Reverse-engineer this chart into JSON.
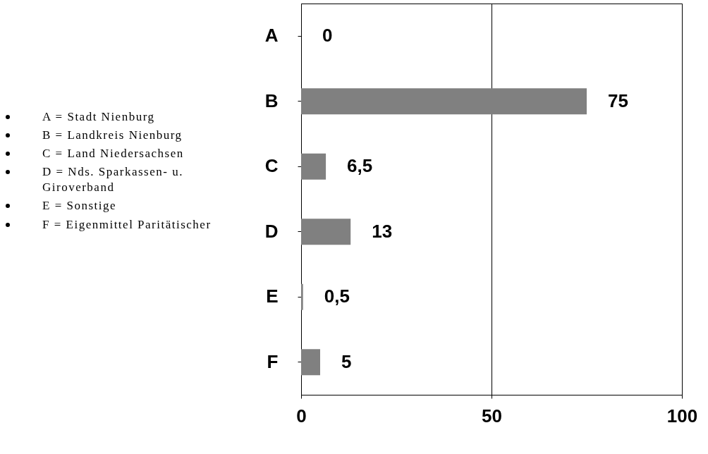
{
  "chart_data": {
    "type": "bar",
    "orientation": "horizontal",
    "categories": [
      "A",
      "B",
      "C",
      "D",
      "E",
      "F"
    ],
    "values": [
      0,
      75,
      6.5,
      13,
      0.5,
      5
    ],
    "value_labels": [
      "0",
      "75",
      "6,5",
      "13",
      "0,5",
      "5"
    ],
    "color": "#808080",
    "xlim": [
      0,
      100
    ],
    "xticks": [
      0,
      50,
      100
    ],
    "grid": "x",
    "annotations": [
      "A = Stadt Nienburg",
      "B = Landkreis Nienburg",
      "C = Land Niedersachsen",
      "D = Nds. Sparkassen- u. Giroverband",
      "E = Sonstige",
      "F = Eigenmittel Paritätischer"
    ]
  }
}
